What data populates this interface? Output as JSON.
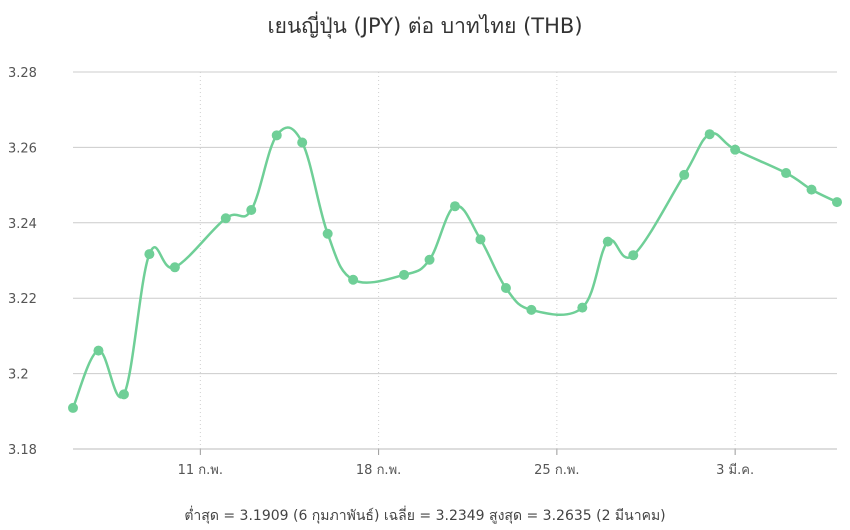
{
  "chart_data": {
    "type": "line",
    "title": "เยนญี่ปุ่น (JPY) ต่อ บาทไทย (THB)",
    "footer": "ต่ำสุด = 3.1909 (6 กุมภาพันธ์) เฉลี่ย = 3.2349 สูงสุด = 3.2635 (2 มีนาคม)",
    "x": [
      "2024-02-06",
      "2024-02-07",
      "2024-02-08",
      "2024-02-09",
      "2024-02-10",
      "2024-02-12",
      "2024-02-13",
      "2024-02-14",
      "2024-02-15",
      "2024-02-16",
      "2024-02-17",
      "2024-02-19",
      "2024-02-20",
      "2024-02-21",
      "2024-02-22",
      "2024-02-23",
      "2024-02-24",
      "2024-02-26",
      "2024-02-27",
      "2024-02-28",
      "2024-03-01",
      "2024-03-02",
      "2024-03-03",
      "2024-03-05",
      "2024-03-06",
      "2024-03-07"
    ],
    "values": [
      3.1909,
      3.2061,
      3.1945,
      3.2317,
      3.2282,
      3.2412,
      3.2434,
      3.2632,
      3.2613,
      3.2371,
      3.2249,
      3.2262,
      3.2302,
      3.2444,
      3.2356,
      3.2227,
      3.2169,
      3.2175,
      3.235,
      3.2314,
      3.2527,
      3.2635,
      3.2594,
      3.2532,
      3.2488,
      3.2455
    ],
    "x_ticks": [
      {
        "date": "2024-02-11",
        "label": "11 ก.พ."
      },
      {
        "date": "2024-02-18",
        "label": "18 ก.พ."
      },
      {
        "date": "2024-02-25",
        "label": "25 ก.พ."
      },
      {
        "date": "2024-03-03",
        "label": "3 มี.ค."
      }
    ],
    "y_ticks": [
      {
        "value": 3.18,
        "label": "3.18"
      },
      {
        "value": 3.2,
        "label": "3.2"
      },
      {
        "value": 3.22,
        "label": "3.22"
      },
      {
        "value": 3.24,
        "label": "3.24"
      },
      {
        "value": 3.26,
        "label": "3.26"
      },
      {
        "value": 3.28,
        "label": "3.28"
      }
    ],
    "xlim": [
      "2024-02-06",
      "2024-03-07"
    ],
    "ylim": [
      3.18,
      3.28
    ],
    "grid": true,
    "legend": "none",
    "line_color": "#6fcf97"
  }
}
